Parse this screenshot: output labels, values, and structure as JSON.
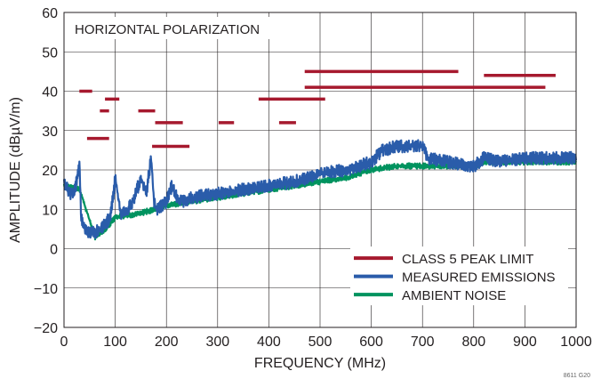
{
  "chart_data": {
    "type": "line",
    "title": "HORIZONTAL POLARIZATION",
    "xlabel": "FREQUENCY (MHz)",
    "ylabel": "AMPLITUDE (dBµV/m)",
    "xlim": [
      0,
      1000
    ],
    "ylim": [
      -20,
      60
    ],
    "xticks": [
      0,
      100,
      200,
      300,
      400,
      500,
      600,
      700,
      800,
      900,
      1000
    ],
    "yticks": [
      -20,
      -10,
      0,
      10,
      20,
      30,
      40,
      50,
      60
    ],
    "ytick_labels": [
      "−20",
      "−10",
      "0",
      "10",
      "20",
      "30",
      "40",
      "50",
      "60"
    ],
    "grid": true,
    "legend_position": "bottom-right",
    "figure_id": "8611 G20",
    "series": [
      {
        "name": "CLASS 5 PEAK LIMIT",
        "color": "#a6192e",
        "style": "segments",
        "segments": [
          {
            "x": [
              30,
              55
            ],
            "y": 40
          },
          {
            "x": [
              45,
              88
            ],
            "y": 28
          },
          {
            "x": [
              70,
              88
            ],
            "y": 35
          },
          {
            "x": [
              80,
              108
            ],
            "y": 38
          },
          {
            "x": [
              145,
              178
            ],
            "y": 35
          },
          {
            "x": [
              178,
              232
            ],
            "y": 32
          },
          {
            "x": [
              172,
              245
            ],
            "y": 26
          },
          {
            "x": [
              302,
              332
            ],
            "y": 32
          },
          {
            "x": [
              380,
              510
            ],
            "y": 38
          },
          {
            "x": [
              420,
              453
            ],
            "y": 32
          },
          {
            "x": [
              470,
              770
            ],
            "y": 45
          },
          {
            "x": [
              470,
              940
            ],
            "y": 41
          },
          {
            "x": [
              820,
              960
            ],
            "y": 44
          }
        ]
      },
      {
        "name": "MEASURED EMISSIONS",
        "color": "#2a5caa",
        "style": "noisy-band",
        "points": [
          [
            0,
            17
          ],
          [
            10,
            14
          ],
          [
            20,
            14
          ],
          [
            30,
            21
          ],
          [
            33,
            8
          ],
          [
            40,
            5
          ],
          [
            50,
            4
          ],
          [
            60,
            4
          ],
          [
            70,
            5
          ],
          [
            80,
            6
          ],
          [
            90,
            8
          ],
          [
            100,
            18
          ],
          [
            110,
            9
          ],
          [
            120,
            9
          ],
          [
            130,
            11
          ],
          [
            140,
            14
          ],
          [
            150,
            18
          ],
          [
            160,
            14
          ],
          [
            170,
            23
          ],
          [
            175,
            12
          ],
          [
            180,
            10
          ],
          [
            190,
            11
          ],
          [
            200,
            12
          ],
          [
            210,
            16
          ],
          [
            220,
            13
          ],
          [
            230,
            12
          ],
          [
            250,
            13
          ],
          [
            300,
            14
          ],
          [
            350,
            15
          ],
          [
            400,
            16
          ],
          [
            450,
            17
          ],
          [
            500,
            19
          ],
          [
            550,
            20
          ],
          [
            600,
            22
          ],
          [
            620,
            25
          ],
          [
            650,
            26
          ],
          [
            680,
            26
          ],
          [
            700,
            26
          ],
          [
            710,
            23
          ],
          [
            750,
            22
          ],
          [
            800,
            21
          ],
          [
            820,
            23
          ],
          [
            850,
            22
          ],
          [
            900,
            23
          ],
          [
            950,
            23
          ],
          [
            1000,
            23
          ]
        ]
      },
      {
        "name": "AMBIENT NOISE",
        "color": "#00935f",
        "style": "noisy-band",
        "points": [
          [
            0,
            16
          ],
          [
            30,
            15
          ],
          [
            60,
            3
          ],
          [
            80,
            5
          ],
          [
            100,
            8
          ],
          [
            150,
            9
          ],
          [
            200,
            11
          ],
          [
            250,
            12
          ],
          [
            300,
            13
          ],
          [
            350,
            14
          ],
          [
            400,
            15
          ],
          [
            450,
            16
          ],
          [
            500,
            17
          ],
          [
            550,
            18
          ],
          [
            600,
            20
          ],
          [
            650,
            21
          ],
          [
            700,
            21
          ],
          [
            750,
            21
          ],
          [
            800,
            21
          ],
          [
            820,
            22
          ],
          [
            850,
            22
          ],
          [
            900,
            22
          ],
          [
            950,
            22
          ],
          [
            1000,
            22
          ]
        ]
      }
    ]
  }
}
